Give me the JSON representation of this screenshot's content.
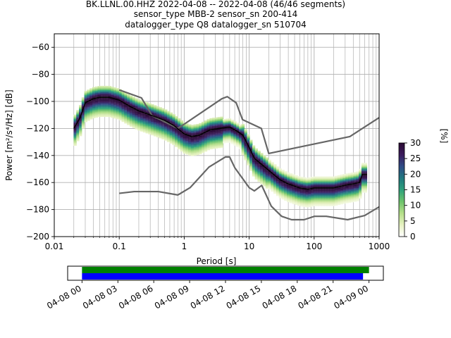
{
  "header": {
    "title_lines": [
      "BK.LLNL.00.HHZ   2022-04-08 -- 2022-04-08  (46/46 segments)",
      "sensor_type MBB-2 sensor_sn 200-414",
      "datalogger_type Q8 datalogger_sn 510704"
    ]
  },
  "chart_data": [
    {
      "type": "heatmap",
      "xlabel": "Period [s]",
      "ylabel": "Power [m²/s⁴/Hz] [dB]",
      "x_scale": "log",
      "xlim": [
        0.01,
        1000
      ],
      "ylim": [
        -200,
        -50
      ],
      "x_ticks": [
        0.01,
        0.1,
        1,
        10,
        100,
        1000
      ],
      "x_tick_labels": [
        "0.01",
        "0.1",
        "1",
        "10",
        "100",
        "1000"
      ],
      "y_ticks": [
        -200,
        -180,
        -160,
        -140,
        -120,
        -100,
        -80,
        -60
      ],
      "grid": true,
      "colorbar": {
        "label": "[%]",
        "ticks": [
          0,
          5,
          10,
          15,
          20,
          25,
          30
        ],
        "range": [
          0,
          30
        ],
        "colormap": [
          "#ffffff",
          "#e7f2c2",
          "#b5df89",
          "#6cc36c",
          "#2ea17c",
          "#21787f",
          "#2f4b86",
          "#3b1b5c",
          "#2a0a33"
        ]
      },
      "mean_psd": {
        "name": "",
        "color": "#000000",
        "x": [
          0.02,
          0.025,
          0.03,
          0.04,
          0.05,
          0.07,
          0.1,
          0.15,
          0.2,
          0.3,
          0.5,
          0.7,
          1.0,
          1.3,
          1.7,
          2.5,
          3.5,
          5.0,
          6.5,
          8.0,
          10,
          12,
          15,
          20,
          30,
          40,
          60,
          80,
          100,
          150,
          200,
          300,
          400,
          500,
          550,
          650
        ],
        "y": [
          -120,
          -112,
          -101,
          -98,
          -97,
          -97,
          -99,
          -104,
          -107,
          -110,
          -114,
          -118,
          -124,
          -126,
          -125,
          -121,
          -120,
          -119,
          -122,
          -125,
          -134,
          -142,
          -146,
          -151,
          -158,
          -161,
          -164,
          -165,
          -164,
          -164,
          -164,
          -162,
          -161,
          -160,
          -154,
          -154
        ]
      },
      "high_noise_model": {
        "name": "",
        "color": "#666666",
        "x": [
          0.1,
          0.22,
          0.32,
          0.8,
          3.8,
          4.6,
          6.3,
          7.9,
          15.4,
          20,
          354.8,
          1000
        ],
        "y": [
          -91.5,
          -97.4,
          -110.5,
          -120,
          -98,
          -96.5,
          -101,
          -113.5,
          -120,
          -138.5,
          -126,
          -112
        ]
      },
      "low_noise_model": {
        "name": "",
        "color": "#666666",
        "x": [
          0.1,
          0.17,
          0.4,
          0.8,
          1.24,
          2.4,
          4.3,
          5.0,
          6.0,
          10,
          12,
          15.6,
          21.9,
          31.6,
          45,
          70,
          101,
          154,
          328,
          600,
          1000
        ],
        "y": [
          -168,
          -166.7,
          -166.7,
          -169.2,
          -163.7,
          -148.6,
          -141.1,
          -141.1,
          -149,
          -163.8,
          -166.2,
          -162.1,
          -177.5,
          -185,
          -187.5,
          -187.5,
          -185,
          -185,
          -187.5,
          -184.4,
          -178
        ]
      }
    },
    {
      "type": "timeline",
      "x_tick_labels": [
        "04-08 00",
        "04-08 03",
        "04-08 06",
        "04-08 09",
        "04-08 12",
        "04-08 15",
        "04-08 18",
        "04-08 21",
        "04-09 00"
      ],
      "x_range_hours": [
        -1.2,
        25.2
      ],
      "bars": [
        {
          "name": "",
          "color": "#008000",
          "start_hours": 0,
          "end_hours": 24.0
        },
        {
          "name": "",
          "color": "#0000ff",
          "start_hours": 0,
          "end_hours": 23.5
        }
      ]
    }
  ]
}
